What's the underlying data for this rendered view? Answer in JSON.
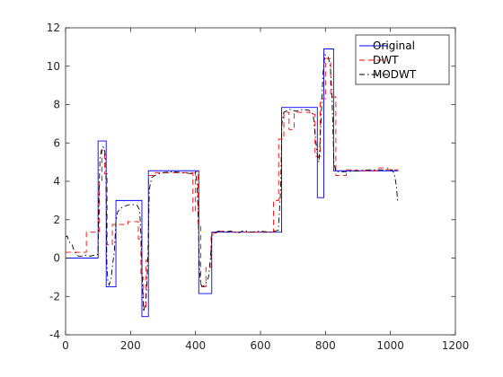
{
  "chart_data": {
    "type": "line",
    "title": "",
    "xlabel": "",
    "ylabel": "",
    "xlim": [
      0,
      1200
    ],
    "ylim": [
      -4,
      12
    ],
    "x_ticks": [
      0,
      200,
      400,
      600,
      800,
      1000,
      1200
    ],
    "y_ticks": [
      -4,
      -2,
      0,
      2,
      4,
      6,
      8,
      10,
      12
    ],
    "grid": false,
    "legend_position": "top-right",
    "series": [
      {
        "name": "Original",
        "color": "#0000ff",
        "style": "solid",
        "points": [
          [
            0,
            0
          ],
          [
            100,
            0
          ],
          [
            100,
            6.1
          ],
          [
            125,
            6.1
          ],
          [
            125,
            -1.5
          ],
          [
            155,
            -1.5
          ],
          [
            155,
            3.0
          ],
          [
            235,
            3.0
          ],
          [
            235,
            -3.05
          ],
          [
            255,
            -3.05
          ],
          [
            255,
            4.55
          ],
          [
            410,
            4.55
          ],
          [
            410,
            -1.85
          ],
          [
            450,
            -1.85
          ],
          [
            450,
            1.35
          ],
          [
            665,
            1.35
          ],
          [
            665,
            7.85
          ],
          [
            775,
            7.85
          ],
          [
            775,
            3.15
          ],
          [
            795,
            3.15
          ],
          [
            795,
            10.9
          ],
          [
            825,
            10.9
          ],
          [
            825,
            4.55
          ],
          [
            1024,
            4.55
          ]
        ]
      },
      {
        "name": "DWT",
        "color": "#ff0000",
        "style": "dashed",
        "points": [
          [
            0,
            0.3
          ],
          [
            64,
            0.3
          ],
          [
            64,
            1.35
          ],
          [
            96,
            1.35
          ],
          [
            96,
            1.35
          ],
          [
            104,
            1.35
          ],
          [
            104,
            4.0
          ],
          [
            112,
            4.0
          ],
          [
            112,
            5.6
          ],
          [
            120,
            5.6
          ],
          [
            120,
            4.4
          ],
          [
            128,
            4.4
          ],
          [
            128,
            0.7
          ],
          [
            144,
            0.7
          ],
          [
            144,
            1.75
          ],
          [
            160,
            1.75
          ],
          [
            160,
            1.75
          ],
          [
            192,
            1.75
          ],
          [
            192,
            1.9
          ],
          [
            224,
            1.9
          ],
          [
            224,
            1.0
          ],
          [
            232,
            1.0
          ],
          [
            232,
            -1.0
          ],
          [
            240,
            -1.0
          ],
          [
            240,
            -2.6
          ],
          [
            248,
            -2.6
          ],
          [
            248,
            -0.1
          ],
          [
            256,
            -0.1
          ],
          [
            256,
            4.3
          ],
          [
            272,
            4.3
          ],
          [
            272,
            4.45
          ],
          [
            392,
            4.45
          ],
          [
            392,
            2.4
          ],
          [
            400,
            2.4
          ],
          [
            400,
            4.5
          ],
          [
            408,
            4.5
          ],
          [
            408,
            1.8
          ],
          [
            416,
            1.8
          ],
          [
            416,
            -1.5
          ],
          [
            432,
            -1.5
          ],
          [
            432,
            -0.5
          ],
          [
            448,
            -0.5
          ],
          [
            448,
            1.3
          ],
          [
            464,
            1.3
          ],
          [
            464,
            1.4
          ],
          [
            512,
            1.4
          ],
          [
            512,
            1.35
          ],
          [
            640,
            1.35
          ],
          [
            640,
            3.0
          ],
          [
            656,
            3.0
          ],
          [
            656,
            6.2
          ],
          [
            672,
            6.2
          ],
          [
            672,
            7.6
          ],
          [
            688,
            7.6
          ],
          [
            688,
            6.7
          ],
          [
            704,
            6.7
          ],
          [
            704,
            7.6
          ],
          [
            752,
            7.6
          ],
          [
            752,
            7.5
          ],
          [
            768,
            7.5
          ],
          [
            768,
            5.3
          ],
          [
            784,
            5.3
          ],
          [
            784,
            8.3
          ],
          [
            800,
            8.3
          ],
          [
            800,
            10.4
          ],
          [
            816,
            10.4
          ],
          [
            816,
            8.4
          ],
          [
            832,
            8.4
          ],
          [
            832,
            4.3
          ],
          [
            864,
            4.3
          ],
          [
            864,
            4.6
          ],
          [
            896,
            4.6
          ],
          [
            896,
            4.55
          ],
          [
            960,
            4.55
          ],
          [
            960,
            4.7
          ],
          [
            992,
            4.7
          ],
          [
            992,
            4.6
          ],
          [
            1024,
            4.6
          ]
        ]
      },
      {
        "name": "MODWT",
        "color": "#000000",
        "style": "dashdot",
        "points": [
          [
            0,
            1.1
          ],
          [
            5,
            1.15
          ],
          [
            10,
            0.9
          ],
          [
            15,
            0.75
          ],
          [
            20,
            0.7
          ],
          [
            25,
            0.45
          ],
          [
            30,
            0.3
          ],
          [
            35,
            0.15
          ],
          [
            40,
            0.1
          ],
          [
            50,
            0.1
          ],
          [
            60,
            0.15
          ],
          [
            75,
            0.1
          ],
          [
            90,
            0.15
          ],
          [
            100,
            0.2
          ],
          [
            103,
            3.5
          ],
          [
            106,
            5.2
          ],
          [
            110,
            5.6
          ],
          [
            115,
            5.8
          ],
          [
            120,
            5.7
          ],
          [
            124,
            4.9
          ],
          [
            127,
            -0.2
          ],
          [
            130,
            -1.2
          ],
          [
            134,
            -1.4
          ],
          [
            140,
            -1.1
          ],
          [
            145,
            -0.3
          ],
          [
            150,
            0.3
          ],
          [
            155,
            1.9
          ],
          [
            160,
            2.4
          ],
          [
            170,
            2.6
          ],
          [
            180,
            2.7
          ],
          [
            200,
            2.8
          ],
          [
            220,
            2.75
          ],
          [
            228,
            2.5
          ],
          [
            232,
            1.2
          ],
          [
            236,
            -1.0
          ],
          [
            240,
            -2.8
          ],
          [
            246,
            -2.4
          ],
          [
            250,
            -1.5
          ],
          [
            254,
            0.5
          ],
          [
            258,
            3.6
          ],
          [
            265,
            4.2
          ],
          [
            280,
            4.35
          ],
          [
            300,
            4.45
          ],
          [
            330,
            4.5
          ],
          [
            360,
            4.45
          ],
          [
            390,
            4.4
          ],
          [
            400,
            4.45
          ],
          [
            404,
            4.0
          ],
          [
            408,
            2.5
          ],
          [
            412,
            -0.5
          ],
          [
            415,
            -1.2
          ],
          [
            420,
            -1.5
          ],
          [
            430,
            -1.4
          ],
          [
            440,
            -1.0
          ],
          [
            446,
            0.0
          ],
          [
            450,
            1.0
          ],
          [
            455,
            1.3
          ],
          [
            470,
            1.4
          ],
          [
            490,
            1.35
          ],
          [
            510,
            1.4
          ],
          [
            530,
            1.3
          ],
          [
            550,
            1.45
          ],
          [
            570,
            1.35
          ],
          [
            600,
            1.4
          ],
          [
            630,
            1.35
          ],
          [
            655,
            1.45
          ],
          [
            662,
            3.5
          ],
          [
            666,
            7.0
          ],
          [
            672,
            7.6
          ],
          [
            690,
            7.75
          ],
          [
            710,
            7.65
          ],
          [
            730,
            7.75
          ],
          [
            750,
            7.7
          ],
          [
            762,
            7.5
          ],
          [
            768,
            6.5
          ],
          [
            774,
            5.5
          ],
          [
            780,
            5.0
          ],
          [
            786,
            7.0
          ],
          [
            792,
            9.5
          ],
          [
            798,
            10.6
          ],
          [
            808,
            10.5
          ],
          [
            815,
            10.0
          ],
          [
            820,
            8.5
          ],
          [
            826,
            5.0
          ],
          [
            832,
            4.5
          ],
          [
            860,
            4.5
          ],
          [
            900,
            4.55
          ],
          [
            940,
            4.6
          ],
          [
            980,
            4.6
          ],
          [
            1005,
            4.6
          ],
          [
            1012,
            4.4
          ],
          [
            1018,
            3.8
          ],
          [
            1022,
            3.0
          ]
        ]
      }
    ]
  }
}
